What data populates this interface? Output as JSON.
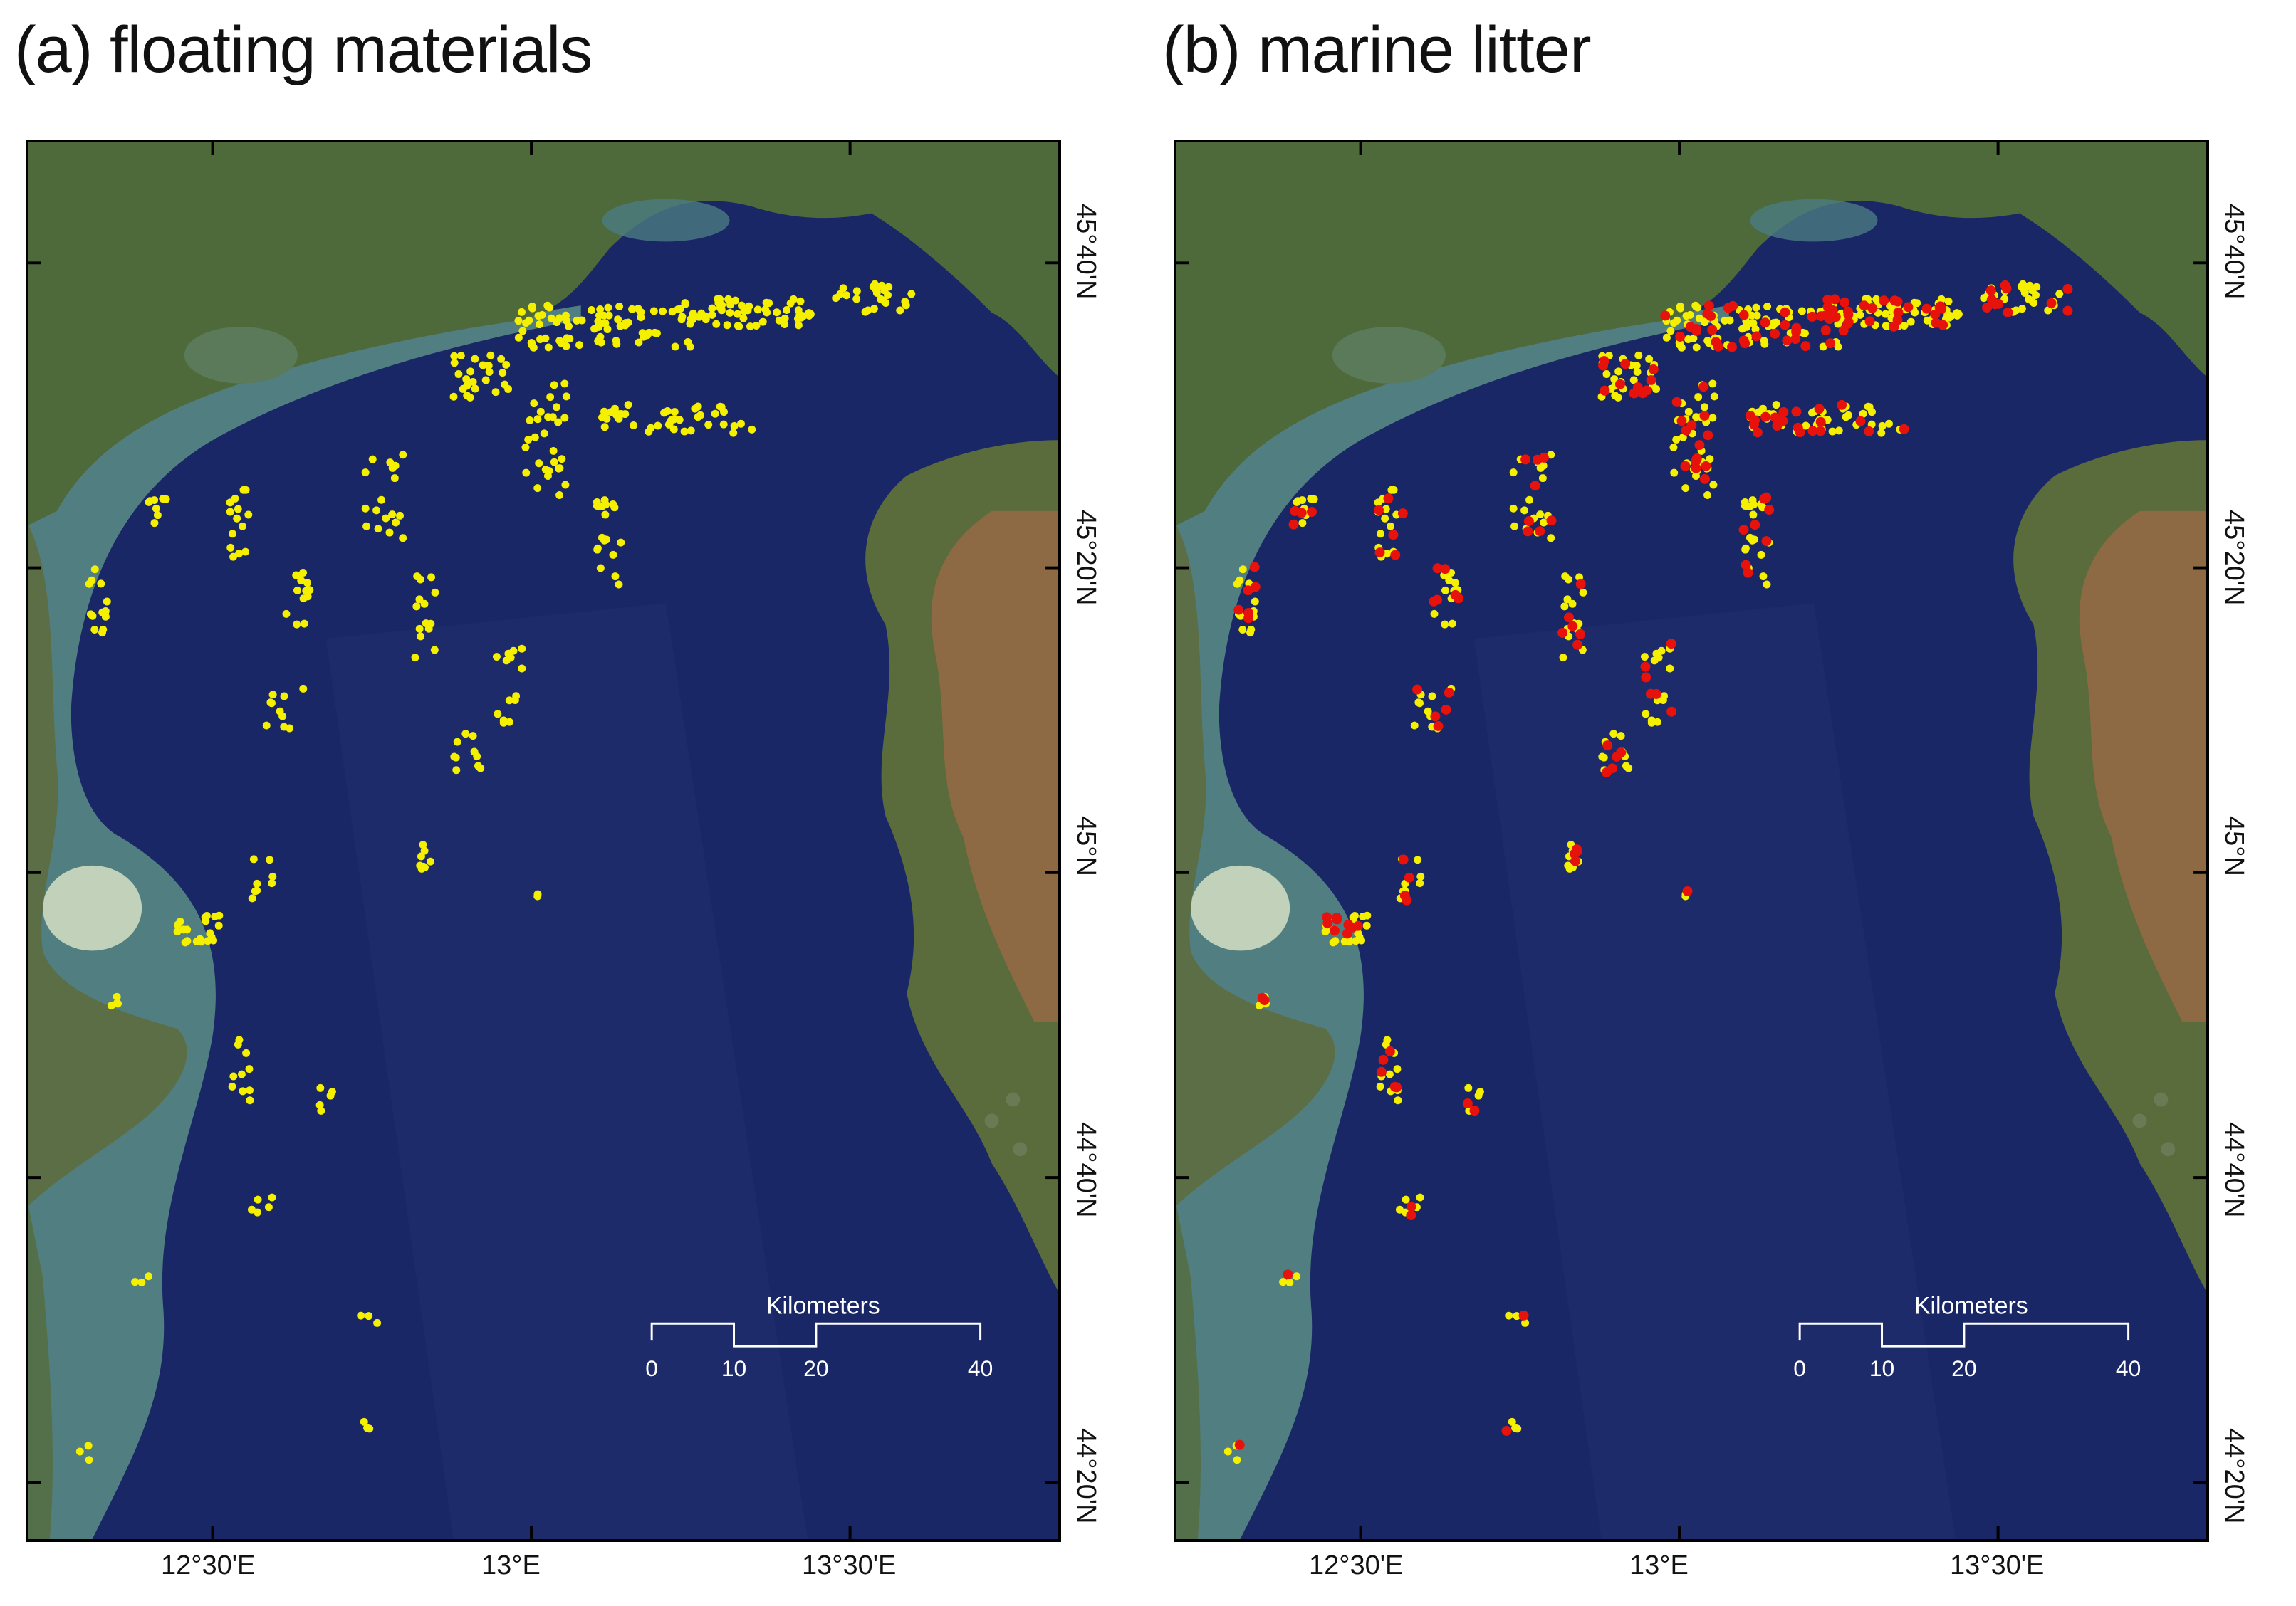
{
  "panels": [
    {
      "title": "(a) floating materials",
      "legend_colors": {
        "floating": "#f5f000"
      }
    },
    {
      "title": "(b) marine litter",
      "legend_colors": {
        "floating": "#f5f000",
        "litter": "#e8120c"
      }
    }
  ],
  "axes": {
    "lon_ticks": [
      "12°30'E",
      "13°E",
      "13°30'E"
    ],
    "lat_ticks": [
      "45°40'N",
      "45°20'N",
      "45°N",
      "44°40'N",
      "44°20'N"
    ]
  },
  "scale_bar": {
    "title": "Kilometers",
    "labels": [
      "0",
      "10",
      "20",
      "40"
    ]
  },
  "colors": {
    "sea": "#1a2766",
    "land": "#4f6a3a",
    "coast_turbid": "#5c8f86",
    "istria_red": "#b86a4a"
  }
}
